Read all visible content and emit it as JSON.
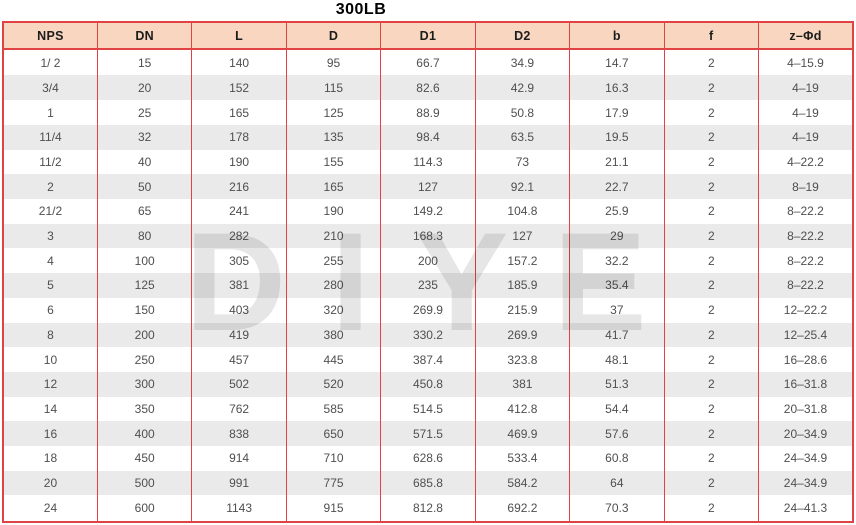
{
  "title": "300LB",
  "watermark": "DIYE",
  "colors": {
    "header_bg": "#f8d6bf",
    "border": "#e04343",
    "stripe": "#eaeaea",
    "text": "#4f4f4f",
    "title_color": "#000000",
    "watermark_color": "#dedede"
  },
  "table": {
    "columns": [
      "NPS",
      "DN",
      "L",
      "D",
      "D1",
      "D2",
      "b",
      "f",
      "z–Φd"
    ],
    "rows": [
      [
        "1/ 2",
        "15",
        "140",
        "95",
        "66.7",
        "34.9",
        "14.7",
        "2",
        "4–15.9"
      ],
      [
        "3/4",
        "20",
        "152",
        "115",
        "82.6",
        "42.9",
        "16.3",
        "2",
        "4–19"
      ],
      [
        "1",
        "25",
        "165",
        "125",
        "88.9",
        "50.8",
        "17.9",
        "2",
        "4–19"
      ],
      [
        "11/4",
        "32",
        "178",
        "135",
        "98.4",
        "63.5",
        "19.5",
        "2",
        "4–19"
      ],
      [
        "11/2",
        "40",
        "190",
        "155",
        "114.3",
        "73",
        "21.1",
        "2",
        "4–22.2"
      ],
      [
        "2",
        "50",
        "216",
        "165",
        "127",
        "92.1",
        "22.7",
        "2",
        "8–19"
      ],
      [
        "21/2",
        "65",
        "241",
        "190",
        "149.2",
        "104.8",
        "25.9",
        "2",
        "8–22.2"
      ],
      [
        "3",
        "80",
        "282",
        "210",
        "168.3",
        "127",
        "29",
        "2",
        "8–22.2"
      ],
      [
        "4",
        "100",
        "305",
        "255",
        "200",
        "157.2",
        "32.2",
        "2",
        "8–22.2"
      ],
      [
        "5",
        "125",
        "381",
        "280",
        "235",
        "185.9",
        "35.4",
        "2",
        "8–22.2"
      ],
      [
        "6",
        "150",
        "403",
        "320",
        "269.9",
        "215.9",
        "37",
        "2",
        "12–22.2"
      ],
      [
        "8",
        "200",
        "419",
        "380",
        "330.2",
        "269.9",
        "41.7",
        "2",
        "12–25.4"
      ],
      [
        "10",
        "250",
        "457",
        "445",
        "387.4",
        "323.8",
        "48.1",
        "2",
        "16–28.6"
      ],
      [
        "12",
        "300",
        "502",
        "520",
        "450.8",
        "381",
        "51.3",
        "2",
        "16–31.8"
      ],
      [
        "14",
        "350",
        "762",
        "585",
        "514.5",
        "412.8",
        "54.4",
        "2",
        "20–31.8"
      ],
      [
        "16",
        "400",
        "838",
        "650",
        "571.5",
        "469.9",
        "57.6",
        "2",
        "20–34.9"
      ],
      [
        "18",
        "450",
        "914",
        "710",
        "628.6",
        "533.4",
        "60.8",
        "2",
        "24–34.9"
      ],
      [
        "20",
        "500",
        "991",
        "775",
        "685.8",
        "584.2",
        "64",
        "2",
        "24–34.9"
      ],
      [
        "24",
        "600",
        "1143",
        "915",
        "812.8",
        "692.2",
        "70.3",
        "2",
        "24–41.3"
      ]
    ]
  }
}
